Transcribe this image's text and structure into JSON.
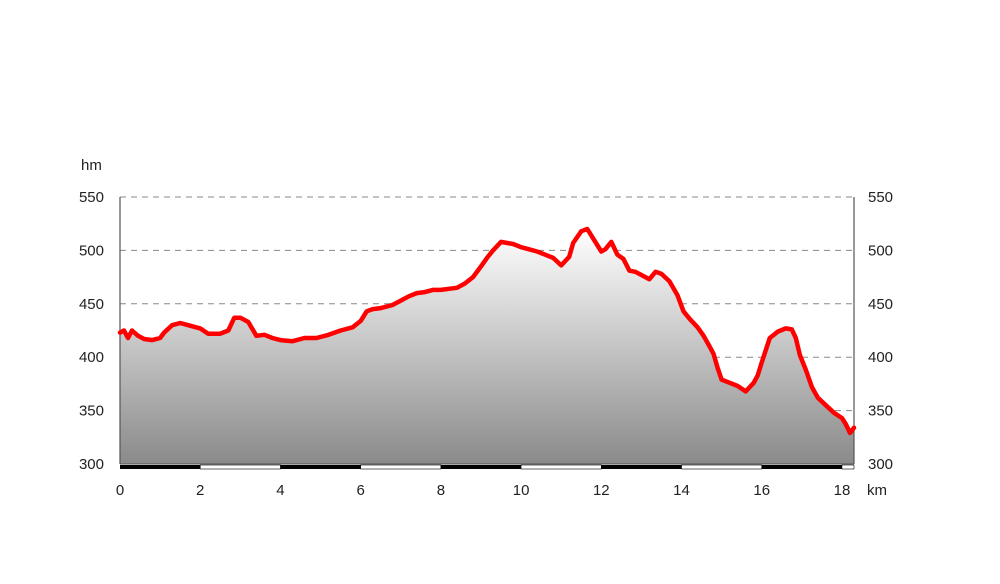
{
  "chart_data": {
    "type": "area",
    "y_unit": "hm",
    "x_unit": "km",
    "xlim": [
      0,
      18.3
    ],
    "ylim": [
      300,
      550
    ],
    "x_ticks": [
      "0",
      "2",
      "4",
      "6",
      "8",
      "10",
      "12",
      "14",
      "16",
      "18"
    ],
    "y_ticks": [
      "300",
      "350",
      "400",
      "450",
      "500",
      "550"
    ],
    "grid": "horizontal-dashed",
    "colors": {
      "line": "#ff0000",
      "fill_top": "#ffffff",
      "fill_bottom": "#8a8a8a"
    },
    "series": [
      {
        "x": [
          0,
          0.1,
          0.2,
          0.3,
          0.45,
          0.6,
          0.8,
          1.0,
          1.1,
          1.3,
          1.5,
          1.7,
          2.0,
          2.2,
          2.5,
          2.7,
          2.85,
          3.0,
          3.2,
          3.4,
          3.6,
          3.8,
          4.0,
          4.3,
          4.6,
          4.9,
          5.2,
          5.5,
          5.8,
          6.0,
          6.15,
          6.3,
          6.5,
          6.8,
          7.0,
          7.2,
          7.4,
          7.6,
          7.8,
          8.0,
          8.2,
          8.4,
          8.6,
          8.8,
          9.0,
          9.15,
          9.3,
          9.5,
          9.8,
          10.0,
          10.2,
          10.4,
          10.6,
          10.8,
          11.0,
          11.2,
          11.3,
          11.5,
          11.65,
          11.8,
          12.0,
          12.1,
          12.25,
          12.4,
          12.55,
          12.7,
          12.85,
          13.0,
          13.2,
          13.35,
          13.5,
          13.7,
          13.9,
          14.05,
          14.2,
          14.4,
          14.55,
          14.7,
          14.8,
          14.9,
          15.0,
          15.2,
          15.4,
          15.6,
          15.7,
          15.8,
          15.9,
          16.0,
          16.2,
          16.4,
          16.6,
          16.75,
          16.85,
          16.95,
          17.1,
          17.25,
          17.4,
          17.6,
          17.8,
          18.0,
          18.1,
          18.2,
          18.3
        ],
        "y": [
          423,
          425,
          418,
          425,
          420,
          417,
          416,
          418,
          423,
          430,
          432,
          430,
          427,
          422,
          422,
          425,
          437,
          437,
          433,
          420,
          421,
          418,
          416,
          415,
          418,
          418,
          421,
          425,
          428,
          434,
          443,
          445,
          446,
          449,
          453,
          457,
          460,
          461,
          463,
          463,
          464,
          465,
          469,
          475,
          485,
          493,
          500,
          508,
          506,
          503,
          501,
          499,
          496,
          493,
          486,
          494,
          507,
          518,
          520,
          511,
          499,
          501,
          508,
          496,
          492,
          481,
          480,
          477,
          473,
          480,
          478,
          471,
          458,
          443,
          436,
          428,
          420,
          410,
          403,
          390,
          379,
          376,
          373,
          368,
          372,
          376,
          383,
          395,
          418,
          424,
          427,
          426,
          418,
          402,
          388,
          372,
          362,
          355,
          348,
          343,
          337,
          329,
          334
        ]
      }
    ]
  }
}
